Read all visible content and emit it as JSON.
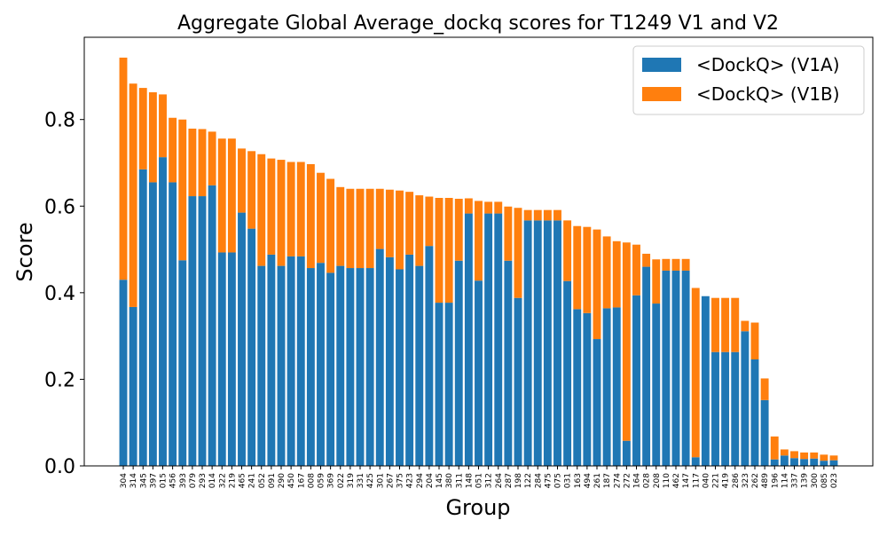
{
  "chart_data": {
    "type": "bar",
    "stacked": true,
    "title": "Aggregate Global Average_dockq scores for T1249 V1 and V2",
    "xlabel": "Group",
    "ylabel": "Score",
    "ylim": [
      0,
      0.99
    ],
    "yticks": [
      0.0,
      0.2,
      0.4,
      0.6,
      0.8
    ],
    "grid": false,
    "legend_position": "top-right",
    "categories": [
      "304",
      "314",
      "345",
      "397",
      "015",
      "456",
      "393",
      "079",
      "293",
      "014",
      "322",
      "219",
      "465",
      "241",
      "052",
      "091",
      "290",
      "450",
      "167",
      "008",
      "059",
      "369",
      "022",
      "319",
      "331",
      "425",
      "301",
      "267",
      "375",
      "423",
      "294",
      "204",
      "145",
      "380",
      "311",
      "148",
      "051",
      "312",
      "264",
      "287",
      "198",
      "122",
      "284",
      "475",
      "075",
      "031",
      "163",
      "494",
      "261",
      "187",
      "274",
      "272",
      "164",
      "028",
      "208",
      "110",
      "462",
      "147",
      "117",
      "040",
      "221",
      "419",
      "286",
      "323",
      "262",
      "489",
      "196",
      "114",
      "337",
      "139",
      "300",
      "085",
      "023"
    ],
    "series": [
      {
        "name": "<DockQ> (V1A)",
        "color": "#1f77b4",
        "values": [
          0.43,
          0.367,
          0.685,
          0.655,
          0.713,
          0.655,
          0.475,
          0.623,
          0.623,
          0.648,
          0.493,
          0.493,
          0.585,
          0.548,
          0.462,
          0.488,
          0.462,
          0.484,
          0.484,
          0.457,
          0.469,
          0.446,
          0.462,
          0.457,
          0.457,
          0.457,
          0.501,
          0.482,
          0.454,
          0.488,
          0.462,
          0.508,
          0.377,
          0.377,
          0.474,
          0.583,
          0.428,
          0.583,
          0.583,
          0.474,
          0.388,
          0.567,
          0.567,
          0.567,
          0.567,
          0.427,
          0.362,
          0.353,
          0.293,
          0.364,
          0.366,
          0.058,
          0.394,
          0.46,
          0.375,
          0.451,
          0.451,
          0.451,
          0.02,
          0.392,
          0.263,
          0.263,
          0.263,
          0.311,
          0.246,
          0.152,
          0.015,
          0.024,
          0.018,
          0.016,
          0.017,
          0.012,
          0.013
        ]
      },
      {
        "name": "<DockQ> (V1B)",
        "color": "#ff7f0e",
        "values": [
          0.513,
          0.516,
          0.188,
          0.208,
          0.145,
          0.149,
          0.325,
          0.156,
          0.155,
          0.124,
          0.263,
          0.263,
          0.148,
          0.179,
          0.258,
          0.222,
          0.245,
          0.218,
          0.218,
          0.24,
          0.208,
          0.217,
          0.182,
          0.183,
          0.183,
          0.183,
          0.139,
          0.156,
          0.182,
          0.145,
          0.163,
          0.114,
          0.242,
          0.242,
          0.143,
          0.035,
          0.184,
          0.027,
          0.027,
          0.125,
          0.208,
          0.024,
          0.024,
          0.024,
          0.024,
          0.14,
          0.192,
          0.199,
          0.253,
          0.166,
          0.153,
          0.458,
          0.117,
          0.03,
          0.102,
          0.027,
          0.027,
          0.027,
          0.391,
          0.0,
          0.125,
          0.125,
          0.125,
          0.024,
          0.085,
          0.05,
          0.053,
          0.014,
          0.016,
          0.015,
          0.014,
          0.014,
          0.011
        ]
      }
    ]
  }
}
